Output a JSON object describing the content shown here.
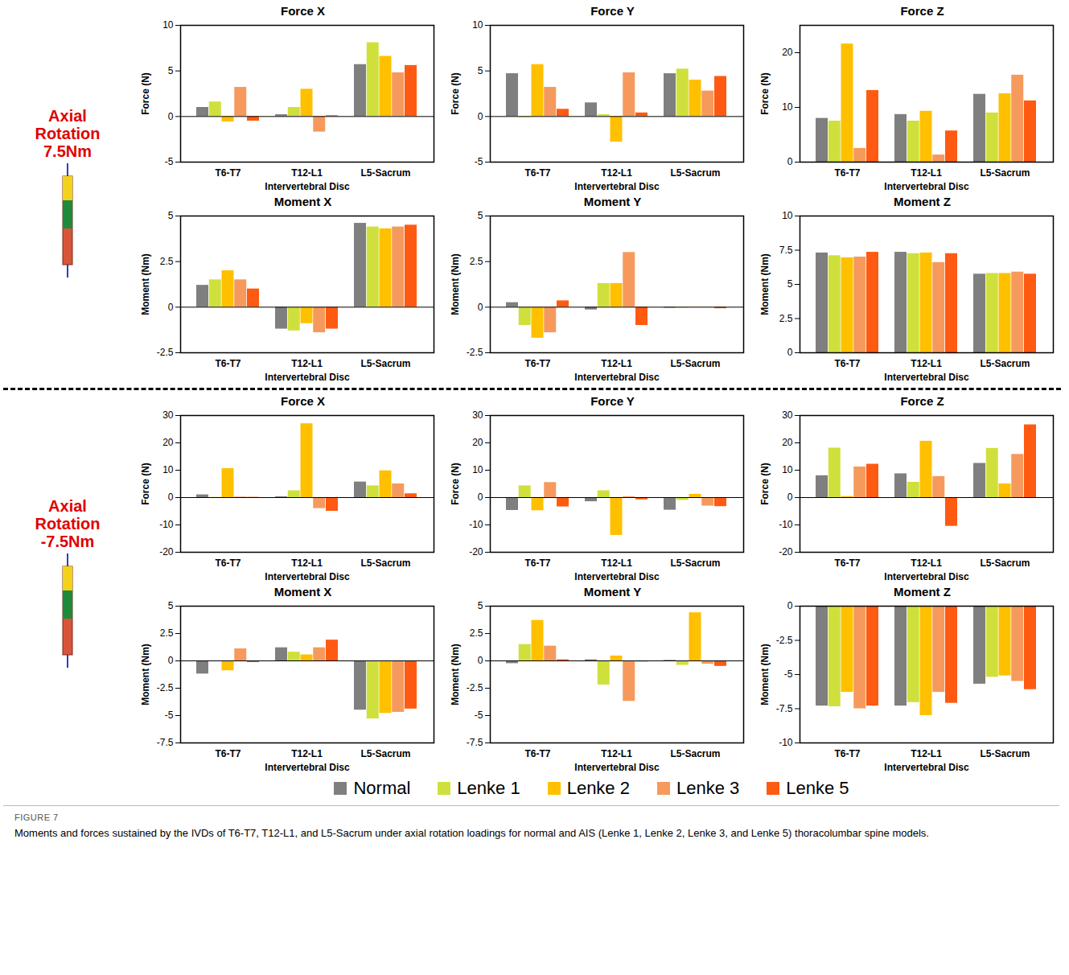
{
  "chart_data": [
    {
      "type": "bar",
      "title": "Force X",
      "xlabel": "Intervertebral Disc",
      "ylabel": "Force (N)",
      "categories": [
        "T6-T7",
        "T12-L1",
        "L5-Sacrum"
      ],
      "ylim": [
        -5,
        10
      ],
      "yticks": [
        -5,
        0,
        5,
        10
      ],
      "series": [
        {
          "name": "Normal",
          "color": "#7f7f7f",
          "values": [
            1.0,
            0.2,
            5.7
          ]
        },
        {
          "name": "Lenke 1",
          "color": "#cfe03c",
          "values": [
            1.6,
            1.0,
            8.1
          ]
        },
        {
          "name": "Lenke 2",
          "color": "#ffc000",
          "values": [
            -0.6,
            3.0,
            6.6
          ]
        },
        {
          "name": "Lenke 3",
          "color": "#f59a5c",
          "values": [
            3.2,
            -1.7,
            4.8
          ]
        },
        {
          "name": "Lenke 5",
          "color": "#ff5a12",
          "values": [
            -0.5,
            0.1,
            5.6
          ]
        }
      ]
    },
    {
      "type": "bar",
      "title": "Force Y",
      "xlabel": "Intervertebral Disc",
      "ylabel": "Force (N)",
      "categories": [
        "T6-T7",
        "T12-L1",
        "L5-Sacrum"
      ],
      "ylim": [
        -5,
        10
      ],
      "yticks": [
        -5,
        0,
        5,
        10
      ],
      "series": [
        {
          "name": "Normal",
          "color": "#7f7f7f",
          "values": [
            4.7,
            1.5,
            4.7
          ]
        },
        {
          "name": "Lenke 1",
          "color": "#cfe03c",
          "values": [
            -0.1,
            0.2,
            5.2
          ]
        },
        {
          "name": "Lenke 2",
          "color": "#ffc000",
          "values": [
            5.7,
            -2.8,
            4.0
          ]
        },
        {
          "name": "Lenke 3",
          "color": "#f59a5c",
          "values": [
            3.2,
            4.8,
            2.8
          ]
        },
        {
          "name": "Lenke 5",
          "color": "#ff5a12",
          "values": [
            0.8,
            0.4,
            4.4
          ]
        }
      ]
    },
    {
      "type": "bar",
      "title": "Force Z",
      "xlabel": "Intervertebral Disc",
      "ylabel": "Force (N)",
      "categories": [
        "T6-T7",
        "T12-L1",
        "L5-Sacrum"
      ],
      "ylim": [
        0,
        25
      ],
      "yticks": [
        0,
        10,
        20
      ],
      "series": [
        {
          "name": "Normal",
          "color": "#7f7f7f",
          "values": [
            8.0,
            8.7,
            12.4
          ]
        },
        {
          "name": "Lenke 1",
          "color": "#cfe03c",
          "values": [
            7.5,
            7.5,
            9.0
          ]
        },
        {
          "name": "Lenke 2",
          "color": "#ffc000",
          "values": [
            21.6,
            9.3,
            12.5
          ]
        },
        {
          "name": "Lenke 3",
          "color": "#f59a5c",
          "values": [
            2.5,
            1.3,
            15.9
          ]
        },
        {
          "name": "Lenke 5",
          "color": "#ff5a12",
          "values": [
            13.1,
            5.7,
            11.2
          ]
        }
      ]
    },
    {
      "type": "bar",
      "title": "Moment X",
      "xlabel": "Intervertebral Disc",
      "ylabel": "Moment (Nm)",
      "categories": [
        "T6-T7",
        "T12-L1",
        "L5-Sacrum"
      ],
      "ylim": [
        -2.5,
        5
      ],
      "yticks": [
        -2.5,
        0,
        2.5,
        5
      ],
      "series": [
        {
          "name": "Normal",
          "color": "#7f7f7f",
          "values": [
            1.2,
            -1.2,
            4.6
          ]
        },
        {
          "name": "Lenke 1",
          "color": "#cfe03c",
          "values": [
            1.5,
            -1.3,
            4.4
          ]
        },
        {
          "name": "Lenke 2",
          "color": "#ffc000",
          "values": [
            2.0,
            -0.9,
            4.3
          ]
        },
        {
          "name": "Lenke 3",
          "color": "#f59a5c",
          "values": [
            1.5,
            -1.4,
            4.4
          ]
        },
        {
          "name": "Lenke 5",
          "color": "#ff5a12",
          "values": [
            1.0,
            -1.2,
            4.5
          ]
        }
      ]
    },
    {
      "type": "bar",
      "title": "Moment Y",
      "xlabel": "Intervertebral Disc",
      "ylabel": "Moment (Nm)",
      "categories": [
        "T6-T7",
        "T12-L1",
        "L5-Sacrum"
      ],
      "ylim": [
        -2.5,
        5
      ],
      "yticks": [
        -2.5,
        0,
        2.5,
        5
      ],
      "series": [
        {
          "name": "Normal",
          "color": "#7f7f7f",
          "values": [
            0.25,
            -0.15,
            -0.05
          ]
        },
        {
          "name": "Lenke 1",
          "color": "#cfe03c",
          "values": [
            -1.0,
            1.3,
            -0.05
          ]
        },
        {
          "name": "Lenke 2",
          "color": "#ffc000",
          "values": [
            -1.7,
            1.3,
            -0.03
          ]
        },
        {
          "name": "Lenke 3",
          "color": "#f59a5c",
          "values": [
            -1.4,
            3.0,
            -0.02
          ]
        },
        {
          "name": "Lenke 5",
          "color": "#ff5a12",
          "values": [
            0.35,
            -1.0,
            -0.08
          ]
        }
      ]
    },
    {
      "type": "bar",
      "title": "Moment Z",
      "xlabel": "Intervertebral Disc",
      "ylabel": "Moment (Nm)",
      "categories": [
        "T6-T7",
        "T12-L1",
        "L5-Sacrum"
      ],
      "ylim": [
        0,
        10
      ],
      "yticks": [
        0,
        2.5,
        5,
        7.5,
        10
      ],
      "series": [
        {
          "name": "Normal",
          "color": "#7f7f7f",
          "values": [
            7.3,
            7.35,
            5.75
          ]
        },
        {
          "name": "Lenke 1",
          "color": "#cfe03c",
          "values": [
            7.1,
            7.25,
            5.8
          ]
        },
        {
          "name": "Lenke 2",
          "color": "#ffc000",
          "values": [
            6.95,
            7.3,
            5.8
          ]
        },
        {
          "name": "Lenke 3",
          "color": "#f59a5c",
          "values": [
            7.0,
            6.6,
            5.9
          ]
        },
        {
          "name": "Lenke 5",
          "color": "#ff5a12",
          "values": [
            7.35,
            7.25,
            5.75
          ]
        }
      ]
    },
    {
      "type": "bar",
      "title": "Force X",
      "xlabel": "Intervertebral Disc",
      "ylabel": "Force (N)",
      "categories": [
        "T6-T7",
        "T12-L1",
        "L5-Sacrum"
      ],
      "ylim": [
        -20,
        30
      ],
      "yticks": [
        -20,
        -10,
        0,
        10,
        20,
        30
      ],
      "series": [
        {
          "name": "Normal",
          "color": "#7f7f7f",
          "values": [
            1.0,
            0.3,
            5.7
          ]
        },
        {
          "name": "Lenke 1",
          "color": "#cfe03c",
          "values": [
            0.1,
            2.5,
            4.3
          ]
        },
        {
          "name": "Lenke 2",
          "color": "#ffc000",
          "values": [
            10.6,
            27.0,
            9.8
          ]
        },
        {
          "name": "Lenke 3",
          "color": "#f59a5c",
          "values": [
            0.2,
            -4.0,
            5.0
          ]
        },
        {
          "name": "Lenke 5",
          "color": "#ff5a12",
          "values": [
            0.1,
            -5.0,
            1.4
          ]
        }
      ]
    },
    {
      "type": "bar",
      "title": "Force Y",
      "xlabel": "Intervertebral Disc",
      "ylabel": "Force (N)",
      "categories": [
        "T6-T7",
        "T12-L1",
        "L5-Sacrum"
      ],
      "ylim": [
        -20,
        30
      ],
      "yticks": [
        -20,
        -10,
        0,
        10,
        20,
        30
      ],
      "series": [
        {
          "name": "Normal",
          "color": "#7f7f7f",
          "values": [
            -4.7,
            -1.5,
            -4.6
          ]
        },
        {
          "name": "Lenke 1",
          "color": "#cfe03c",
          "values": [
            4.3,
            2.5,
            -1.0
          ]
        },
        {
          "name": "Lenke 2",
          "color": "#ffc000",
          "values": [
            -4.8,
            -13.8,
            1.2
          ]
        },
        {
          "name": "Lenke 3",
          "color": "#f59a5c",
          "values": [
            5.5,
            0.3,
            -3.1
          ]
        },
        {
          "name": "Lenke 5",
          "color": "#ff5a12",
          "values": [
            -3.4,
            -0.8,
            -3.3
          ]
        }
      ]
    },
    {
      "type": "bar",
      "title": "Force Z",
      "xlabel": "Intervertebral Disc",
      "ylabel": "Force (N)",
      "categories": [
        "T6-T7",
        "T12-L1",
        "L5-Sacrum"
      ],
      "ylim": [
        -20,
        30
      ],
      "yticks": [
        -20,
        -10,
        0,
        10,
        20,
        30
      ],
      "series": [
        {
          "name": "Normal",
          "color": "#7f7f7f",
          "values": [
            8.0,
            8.7,
            12.5
          ]
        },
        {
          "name": "Lenke 1",
          "color": "#cfe03c",
          "values": [
            18.1,
            5.6,
            18.0
          ]
        },
        {
          "name": "Lenke 2",
          "color": "#ffc000",
          "values": [
            0.4,
            20.6,
            5.0
          ]
        },
        {
          "name": "Lenke 3",
          "color": "#f59a5c",
          "values": [
            11.2,
            7.7,
            15.8
          ]
        },
        {
          "name": "Lenke 5",
          "color": "#ff5a12",
          "values": [
            12.2,
            -10.5,
            26.6
          ]
        }
      ]
    },
    {
      "type": "bar",
      "title": "Moment X",
      "xlabel": "Intervertebral Disc",
      "ylabel": "Moment (Nm)",
      "categories": [
        "T6-T7",
        "T12-L1",
        "L5-Sacrum"
      ],
      "ylim": [
        -7.5,
        5
      ],
      "yticks": [
        -7.5,
        -5,
        -2.5,
        0,
        2.5,
        5
      ],
      "series": [
        {
          "name": "Normal",
          "color": "#7f7f7f",
          "values": [
            -1.2,
            1.2,
            -4.5
          ]
        },
        {
          "name": "Lenke 1",
          "color": "#cfe03c",
          "values": [
            -0.05,
            0.8,
            -5.3
          ]
        },
        {
          "name": "Lenke 2",
          "color": "#ffc000",
          "values": [
            -0.9,
            0.55,
            -4.8
          ]
        },
        {
          "name": "Lenke 3",
          "color": "#f59a5c",
          "values": [
            1.1,
            1.2,
            -4.7
          ]
        },
        {
          "name": "Lenke 5",
          "color": "#ff5a12",
          "values": [
            -0.15,
            1.9,
            -4.4
          ]
        }
      ]
    },
    {
      "type": "bar",
      "title": "Moment Y",
      "xlabel": "Intervertebral Disc",
      "ylabel": "Moment (Nm)",
      "categories": [
        "T6-T7",
        "T12-L1",
        "L5-Sacrum"
      ],
      "ylim": [
        -7.5,
        5
      ],
      "yticks": [
        -7.5,
        -5,
        -2.5,
        0,
        2.5,
        5
      ],
      "series": [
        {
          "name": "Normal",
          "color": "#7f7f7f",
          "values": [
            -0.25,
            0.1,
            0.05
          ]
        },
        {
          "name": "Lenke 1",
          "color": "#cfe03c",
          "values": [
            1.5,
            -2.2,
            -0.4
          ]
        },
        {
          "name": "Lenke 2",
          "color": "#ffc000",
          "values": [
            3.7,
            0.45,
            4.4
          ]
        },
        {
          "name": "Lenke 3",
          "color": "#f59a5c",
          "values": [
            1.35,
            -3.7,
            -0.3
          ]
        },
        {
          "name": "Lenke 5",
          "color": "#ff5a12",
          "values": [
            0.1,
            -0.1,
            -0.5
          ]
        }
      ]
    },
    {
      "type": "bar",
      "title": "Moment Z",
      "xlabel": "Intervertebral Disc",
      "ylabel": "Moment (Nm)",
      "categories": [
        "T6-T7",
        "T12-L1",
        "L5-Sacrum"
      ],
      "ylim": [
        -10,
        0
      ],
      "yticks": [
        -10,
        -7.5,
        -5,
        -2.5,
        0
      ],
      "series": [
        {
          "name": "Normal",
          "color": "#7f7f7f",
          "values": [
            -7.3,
            -7.3,
            -5.7
          ]
        },
        {
          "name": "Lenke 1",
          "color": "#cfe03c",
          "values": [
            -7.35,
            -7.05,
            -5.2
          ]
        },
        {
          "name": "Lenke 2",
          "color": "#ffc000",
          "values": [
            -6.3,
            -8.0,
            -5.1
          ]
        },
        {
          "name": "Lenke 3",
          "color": "#f59a5c",
          "values": [
            -7.5,
            -6.3,
            -5.5
          ]
        },
        {
          "name": "Lenke 5",
          "color": "#ff5a12",
          "values": [
            -7.3,
            -7.1,
            -6.1
          ]
        }
      ]
    }
  ],
  "figure": {
    "groups": [
      [
        "Axial",
        "Rotation",
        "7.5Nm"
      ],
      [
        "Axial",
        "Rotation",
        "-7.5Nm"
      ]
    ],
    "legend": "bottom",
    "figure_label": "FIGURE 7",
    "caption": "Moments and forces sustained by the IVDs of T6-T7, T12-L1, and L5-Sacrum under axial rotation loadings for normal and AIS (Lenke 1, Lenke 2, Lenke 3, and Lenke 5) thoracolumbar spine models."
  }
}
